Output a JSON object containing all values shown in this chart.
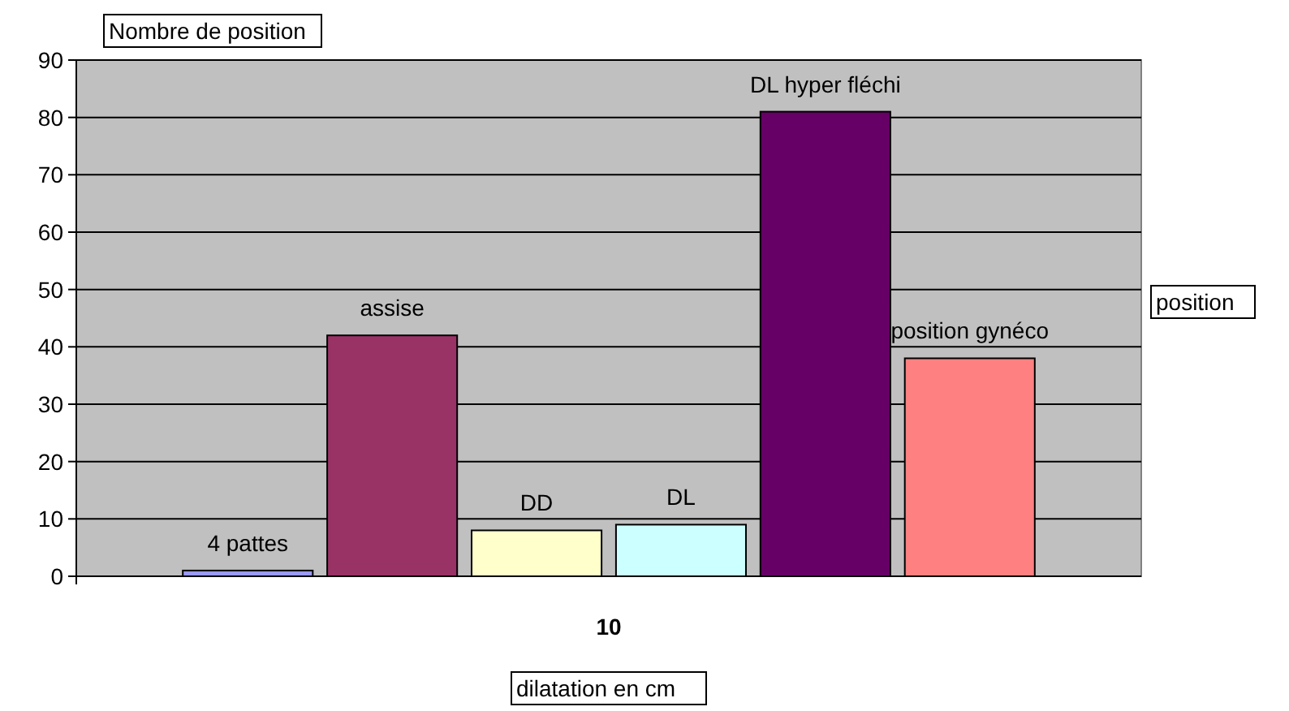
{
  "chart_data": {
    "type": "bar",
    "categories": [
      "10"
    ],
    "xlabel": "dilatation en cm",
    "ylabel": "Nombre de position",
    "annotations": [
      "position"
    ],
    "series": [
      {
        "name": "4 pattes",
        "color": "#9999ff",
        "values": [
          1
        ]
      },
      {
        "name": "assise",
        "color": "#993366",
        "values": [
          42
        ]
      },
      {
        "name": "DD",
        "color": "#ffffcc",
        "values": [
          8
        ]
      },
      {
        "name": "DL",
        "color": "#ccffff",
        "values": [
          9
        ]
      },
      {
        "name": "DL hyper fléchi",
        "color": "#660066",
        "values": [
          81
        ]
      },
      {
        "name": "position gynéco",
        "color": "#ff8080",
        "values": [
          38
        ]
      }
    ],
    "ylim": [
      0,
      90
    ],
    "yticks": [
      0,
      10,
      20,
      30,
      40,
      50,
      60,
      70,
      80,
      90
    ],
    "grid": "y"
  }
}
